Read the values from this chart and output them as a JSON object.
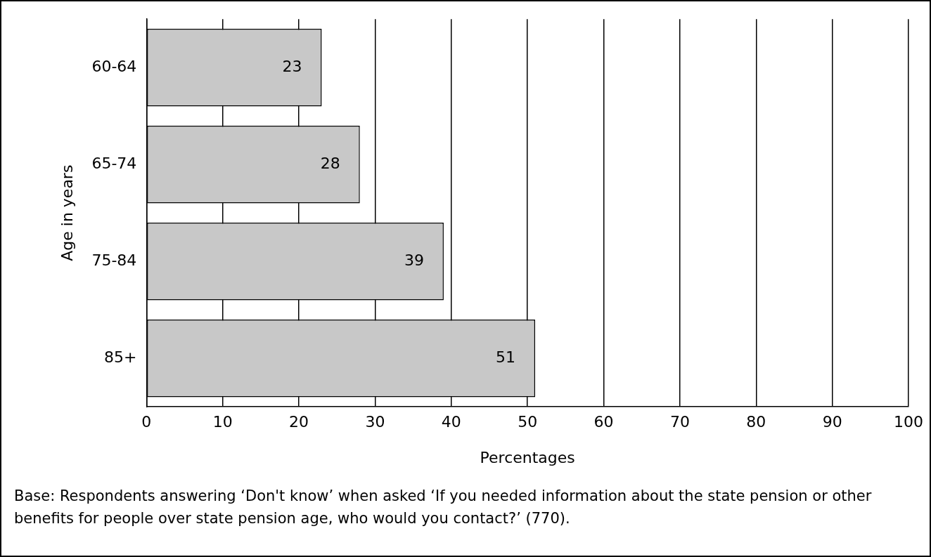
{
  "chart_data": {
    "type": "bar",
    "orientation": "horizontal",
    "categories": [
      "60-64",
      "65-74",
      "75-84",
      "85+"
    ],
    "values": [
      23,
      28,
      39,
      51
    ],
    "color": "#c8c8c8",
    "xlim": [
      0,
      100
    ],
    "xticks": [
      0,
      10,
      20,
      30,
      40,
      50,
      60,
      70,
      80,
      90,
      100
    ],
    "xlabel": "Percentages",
    "ylabel": "Age in years",
    "grid": "x",
    "data_labels": true,
    "annotations": [
      "Base: Respondents answering ‘Don't know’  when asked ‘If you needed information about the state pension or other benefits for people over state pension age, who would you contact?’ (770)."
    ]
  }
}
